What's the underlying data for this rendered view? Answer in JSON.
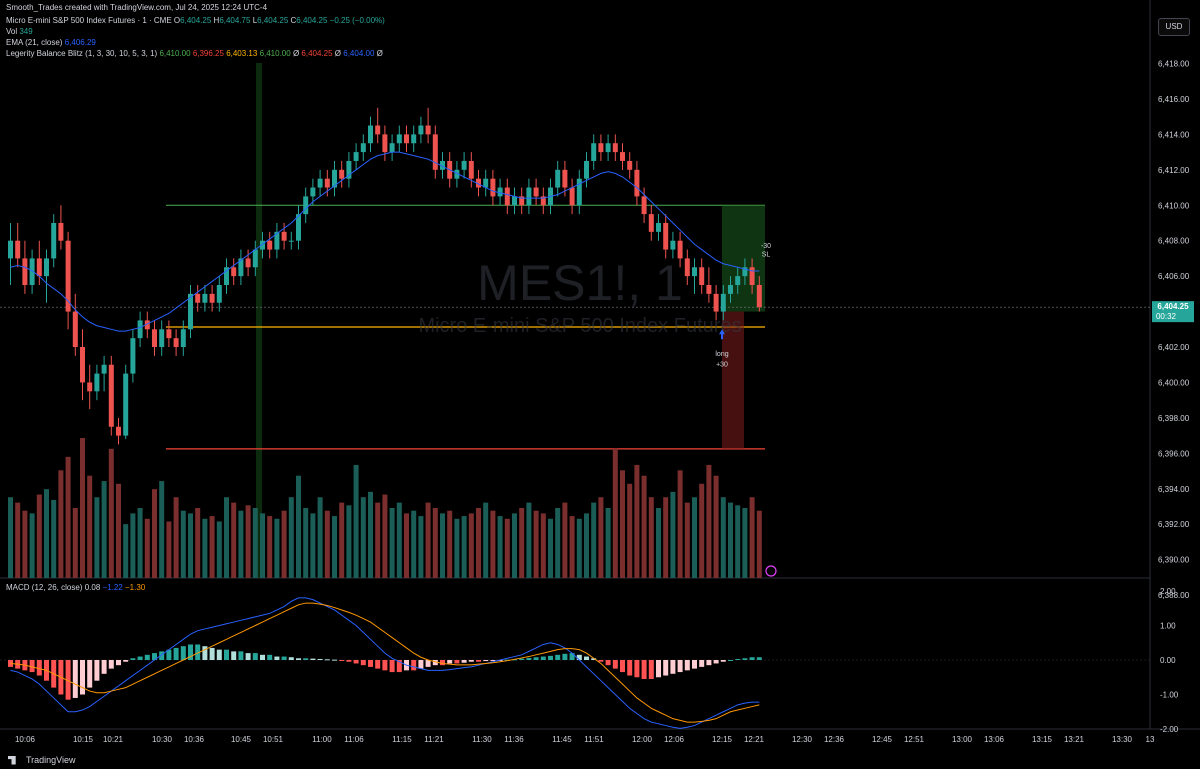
{
  "header": {
    "watermark_line": "Smooth_Trades created with TradingView.com, Jul 24, 2025 12:24 UTC-4",
    "symbol_line": {
      "name": "Micro E-mini S&P 500 Index Futures · 1 · CME",
      "o_label": "O",
      "o_value": "6,404.25",
      "h_label": "H",
      "h_value": "6,404.75",
      "l_label": "L",
      "l_value": "6,404.25",
      "c_label": "C",
      "c_value": "6,404.25",
      "change": "−0.25 (−0.00%)"
    },
    "vol_label": "Vol",
    "vol_value": "349",
    "ema_label": "EMA (21, close)",
    "ema_value": "6,406.29",
    "legerity_label": "Legerity Balance Blitz (1, 3, 30, 10, 5, 3, 1)",
    "legerity_values": [
      "6,410.00",
      "6,396.25",
      "6,403.13",
      "6,410.00",
      "Ø",
      "6,404.25",
      "Ø",
      "6,404.00",
      "Ø"
    ]
  },
  "currency": "USD",
  "watermark": {
    "symbol": "MES1!, 1",
    "name": "Micro E-mini S&P 500 Index Futures"
  },
  "price_axis": {
    "ticks": [
      "6,418.00",
      "6,416.00",
      "6,414.00",
      "6,412.00",
      "6,410.00",
      "6,408.00",
      "6,406.00",
      "6,404.00",
      "6,402.00",
      "6,400.00",
      "6,398.00",
      "6,396.00",
      "6,394.00",
      "6,392.00",
      "6,390.00",
      "6,388.00"
    ],
    "current_price": "6,404.25",
    "countdown": "00:32"
  },
  "macd_axis": {
    "ticks": [
      "2.00",
      "1.00",
      "0.00",
      "-1.00",
      "-2.00"
    ]
  },
  "macd_header": {
    "label": "MACD (12, 26, close)",
    "v1": "0.08",
    "v2": "−1.22",
    "v3": "−1.30"
  },
  "time_axis": {
    "ticks": [
      "10:06",
      "10:15",
      "10:21",
      "10:30",
      "10:36",
      "10:45",
      "10:51",
      "11:00",
      "11:06",
      "11:15",
      "11:21",
      "11:30",
      "11:36",
      "11:45",
      "11:51",
      "12:00",
      "12:06",
      "12:15",
      "12:21",
      "12:30",
      "12:36",
      "12:45",
      "12:51",
      "13:00",
      "13:06",
      "13:15",
      "13:21",
      "13:30",
      "13"
    ]
  },
  "trade": {
    "entry_label": "long",
    "entry_qty": "+30",
    "exit_qty": "-30",
    "exit_label": "SL"
  },
  "brand": "TradingView",
  "colors": {
    "up": "#26a69a",
    "down": "#ef5350",
    "ema": "#2962ff",
    "macd": "#2962ff",
    "signal": "#ff9800",
    "level_green": "#4caf50",
    "level_orange": "#ffb300",
    "level_red": "#f44336"
  },
  "chart_data": {
    "type": "candlestick",
    "interval": "1 minute",
    "ylim": [
      6388,
      6419
    ],
    "levels": [
      6410.0,
      6403.13,
      6396.25
    ],
    "entry_price": 6404.0,
    "ohlc": [
      [
        6407.0,
        6409.0,
        6405.5,
        6408.0
      ],
      [
        6408.0,
        6409.0,
        6406.5,
        6407.0
      ],
      [
        6407.0,
        6408.0,
        6405.0,
        6405.5
      ],
      [
        6405.5,
        6407.5,
        6405.0,
        6407.0
      ],
      [
        6407.0,
        6408.0,
        6405.5,
        6406.0
      ],
      [
        6406.0,
        6407.5,
        6404.5,
        6407.0
      ],
      [
        6407.0,
        6409.5,
        6406.5,
        6409.0
      ],
      [
        6409.0,
        6410.0,
        6407.5,
        6408.0
      ],
      [
        6408.0,
        6408.5,
        6403.0,
        6404.0
      ],
      [
        6404.0,
        6405.0,
        6401.5,
        6402.0
      ],
      [
        6402.0,
        6403.0,
        6399.0,
        6400.0
      ],
      [
        6400.0,
        6401.0,
        6398.5,
        6399.5
      ],
      [
        6399.5,
        6401.0,
        6399.0,
        6400.5
      ],
      [
        6400.5,
        6401.5,
        6399.5,
        6401.0
      ],
      [
        6401.0,
        6401.5,
        6397.0,
        6397.5
      ],
      [
        6397.5,
        6398.0,
        6396.5,
        6397.0
      ],
      [
        6397.0,
        6401.0,
        6396.8,
        6400.5
      ],
      [
        6400.5,
        6403.0,
        6400.0,
        6402.5
      ],
      [
        6402.5,
        6404.0,
        6402.0,
        6403.5
      ],
      [
        6403.5,
        6404.0,
        6402.5,
        6403.0
      ],
      [
        6403.0,
        6403.5,
        6401.5,
        6402.0
      ],
      [
        6402.0,
        6403.5,
        6401.5,
        6403.0
      ],
      [
        6403.0,
        6403.5,
        6402.0,
        6402.5
      ],
      [
        6402.5,
        6403.0,
        6401.5,
        6402.0
      ],
      [
        6402.0,
        6403.5,
        6401.5,
        6403.0
      ],
      [
        6403.0,
        6405.5,
        6402.5,
        6405.0
      ],
      [
        6405.0,
        6405.5,
        6404.0,
        6404.5
      ],
      [
        6404.5,
        6405.5,
        6404.0,
        6405.0
      ],
      [
        6405.0,
        6405.5,
        6404.0,
        6404.5
      ],
      [
        6404.5,
        6406.0,
        6404.0,
        6405.5
      ],
      [
        6405.5,
        6407.0,
        6405.0,
        6406.5
      ],
      [
        6406.5,
        6407.0,
        6405.5,
        6406.0
      ],
      [
        6406.0,
        6407.5,
        6405.5,
        6407.0
      ],
      [
        6407.0,
        6407.5,
        6406.0,
        6406.5
      ],
      [
        6406.5,
        6408.0,
        6406.0,
        6407.5
      ],
      [
        6407.5,
        6408.5,
        6407.0,
        6408.0
      ],
      [
        6408.0,
        6408.5,
        6407.0,
        6407.5
      ],
      [
        6407.5,
        6409.0,
        6407.0,
        6408.5
      ],
      [
        6408.5,
        6409.0,
        6407.5,
        6408.0
      ],
      [
        6408.0,
        6408.5,
        6407.5,
        6408.0
      ],
      [
        6408.0,
        6410.0,
        6407.5,
        6409.5
      ],
      [
        6409.5,
        6411.0,
        6409.0,
        6410.5
      ],
      [
        6410.5,
        6411.5,
        6410.0,
        6411.0
      ],
      [
        6411.0,
        6412.0,
        6410.5,
        6411.5
      ],
      [
        6411.5,
        6412.0,
        6410.5,
        6411.0
      ],
      [
        6411.0,
        6412.5,
        6410.5,
        6412.0
      ],
      [
        6412.0,
        6412.5,
        6411.0,
        6411.5
      ],
      [
        6411.5,
        6413.0,
        6411.0,
        6412.5
      ],
      [
        6412.5,
        6413.5,
        6412.0,
        6413.0
      ],
      [
        6413.0,
        6414.0,
        6412.5,
        6413.5
      ],
      [
        6413.5,
        6415.0,
        6413.0,
        6414.5
      ],
      [
        6414.5,
        6415.5,
        6413.5,
        6414.0
      ],
      [
        6414.0,
        6414.5,
        6412.5,
        6413.0
      ],
      [
        6413.0,
        6414.0,
        6412.5,
        6413.5
      ],
      [
        6413.5,
        6414.5,
        6413.0,
        6414.0
      ],
      [
        6414.0,
        6414.5,
        6413.0,
        6413.5
      ],
      [
        6413.5,
        6414.5,
        6413.0,
        6414.0
      ],
      [
        6414.0,
        6415.0,
        6413.5,
        6414.5
      ],
      [
        6414.5,
        6415.5,
        6413.5,
        6414.0
      ],
      [
        6414.0,
        6414.5,
        6411.5,
        6412.0
      ],
      [
        6412.0,
        6413.0,
        6411.5,
        6412.5
      ],
      [
        6412.5,
        6413.0,
        6411.0,
        6411.5
      ],
      [
        6411.5,
        6412.5,
        6411.0,
        6412.0
      ],
      [
        6412.0,
        6413.0,
        6411.5,
        6412.5
      ],
      [
        6412.5,
        6413.0,
        6411.0,
        6411.5
      ],
      [
        6411.5,
        6412.0,
        6410.5,
        6411.0
      ],
      [
        6411.0,
        6412.0,
        6410.5,
        6411.5
      ],
      [
        6411.5,
        6412.0,
        6410.0,
        6410.5
      ],
      [
        6410.5,
        6411.5,
        6410.0,
        6411.0
      ],
      [
        6411.0,
        6411.5,
        6409.5,
        6410.0
      ],
      [
        6410.0,
        6411.0,
        6409.5,
        6410.5
      ],
      [
        6410.5,
        6411.0,
        6409.5,
        6410.0
      ],
      [
        6410.0,
        6411.5,
        6409.5,
        6411.0
      ],
      [
        6411.0,
        6411.5,
        6410.0,
        6410.5
      ],
      [
        6410.5,
        6411.0,
        6409.5,
        6410.0
      ],
      [
        6410.0,
        6411.5,
        6409.5,
        6411.0
      ],
      [
        6411.0,
        6412.5,
        6410.5,
        6412.0
      ],
      [
        6412.0,
        6412.5,
        6410.5,
        6411.0
      ],
      [
        6411.0,
        6411.5,
        6409.5,
        6410.0
      ],
      [
        6410.0,
        6412.0,
        6409.5,
        6411.5
      ],
      [
        6411.5,
        6413.0,
        6411.0,
        6412.5
      ],
      [
        6412.5,
        6414.0,
        6412.0,
        6413.5
      ],
      [
        6413.5,
        6414.0,
        6412.5,
        6413.0
      ],
      [
        6413.0,
        6414.0,
        6412.5,
        6413.5
      ],
      [
        6413.5,
        6414.0,
        6412.5,
        6413.0
      ],
      [
        6413.0,
        6413.5,
        6412.0,
        6412.5
      ],
      [
        6412.5,
        6413.0,
        6411.5,
        6412.0
      ],
      [
        6412.0,
        6412.5,
        6410.0,
        6410.5
      ],
      [
        6410.5,
        6411.0,
        6409.0,
        6409.5
      ],
      [
        6409.5,
        6410.0,
        6408.0,
        6408.5
      ],
      [
        6408.5,
        6409.5,
        6408.0,
        6409.0
      ],
      [
        6409.0,
        6409.5,
        6407.0,
        6407.5
      ],
      [
        6407.5,
        6408.5,
        6407.0,
        6408.0
      ],
      [
        6408.0,
        6408.5,
        6406.5,
        6407.0
      ],
      [
        6407.0,
        6407.5,
        6405.5,
        6406.0
      ],
      [
        6406.0,
        6407.0,
        6405.0,
        6406.5
      ],
      [
        6406.5,
        6407.0,
        6405.0,
        6405.5
      ],
      [
        6405.5,
        6406.5,
        6404.5,
        6405.0
      ],
      [
        6405.0,
        6405.5,
        6403.5,
        6404.0
      ],
      [
        6404.0,
        6405.5,
        6403.5,
        6405.0
      ],
      [
        6405.0,
        6406.0,
        6404.5,
        6405.5
      ],
      [
        6405.5,
        6406.5,
        6405.0,
        6406.0
      ],
      [
        6406.0,
        6407.0,
        6405.5,
        6406.5
      ],
      [
        6406.5,
        6407.0,
        6405.0,
        6405.5
      ],
      [
        6405.5,
        6406.0,
        6404.0,
        6404.25
      ]
    ],
    "volume": [
      300,
      280,
      250,
      240,
      310,
      330,
      290,
      400,
      450,
      260,
      520,
      380,
      300,
      360,
      480,
      350,
      200,
      240,
      260,
      220,
      330,
      360,
      210,
      300,
      250,
      240,
      260,
      220,
      230,
      210,
      300,
      280,
      250,
      270,
      260,
      240,
      230,
      220,
      250,
      300,
      380,
      260,
      240,
      300,
      250,
      230,
      280,
      270,
      420,
      300,
      320,
      280,
      310,
      260,
      280,
      240,
      250,
      230,
      280,
      260,
      240,
      250,
      220,
      230,
      240,
      260,
      280,
      250,
      230,
      220,
      240,
      260,
      280,
      250,
      240,
      220,
      260,
      280,
      230,
      220,
      240,
      280,
      300,
      260,
      480,
      400,
      350,
      420,
      380,
      300,
      260,
      300,
      320,
      400,
      280,
      300,
      350,
      420,
      380,
      300,
      280,
      270,
      260,
      300,
      250
    ],
    "ema21": [
      6406.5,
      6406.6,
      6406.5,
      6406.3,
      6406.0,
      6405.6,
      6405.3,
      6405.0,
      6404.6,
      6404.1,
      6403.7,
      6403.4,
      6403.2,
      6403.1,
      6403.0,
      6402.9,
      6402.9,
      6403.0,
      6403.1,
      6403.3,
      6403.5,
      6403.7,
      6403.9,
      6404.2,
      6404.5,
      6404.8,
      6405.1,
      6405.4,
      6405.7,
      6406.0,
      6406.3,
      6406.6,
      6406.9,
      6407.2,
      6407.5,
      6407.8,
      6408.1,
      6408.4,
      6408.7,
      6409.0,
      6409.4,
      6409.8,
      6410.2,
      6410.5,
      6410.8,
      6411.1,
      6411.4,
      6411.7,
      6412.0,
      6412.3,
      6412.6,
      6412.8,
      6412.9,
      6413.0,
      6413.0,
      6412.9,
      6412.8,
      6412.7,
      6412.6,
      6412.4,
      6412.2,
      6412.0,
      6411.8,
      6411.6,
      6411.4,
      6411.2,
      6411.0,
      6410.8,
      6410.7,
      6410.6,
      6410.5,
      6410.4,
      6410.4,
      6410.4,
      6410.4,
      6410.5,
      6410.6,
      6410.8,
      6411.0,
      6411.2,
      6411.4,
      6411.6,
      6411.8,
      6411.9,
      6411.8,
      6411.6,
      6411.3,
      6411.0,
      6410.6,
      6410.2,
      6409.8,
      6409.4,
      6409.0,
      6408.6,
      6408.2,
      6407.8,
      6407.5,
      6407.2,
      6406.9,
      6406.7,
      6406.6,
      6406.5,
      6406.4,
      6406.3,
      6406.29
    ],
    "macd_hist": [
      -0.2,
      -0.25,
      -0.3,
      -0.35,
      -0.45,
      -0.6,
      -0.8,
      -1.0,
      -1.15,
      -1.1,
      -1.0,
      -0.8,
      -0.6,
      -0.4,
      -0.25,
      -0.15,
      -0.05,
      0.05,
      0.1,
      0.15,
      0.2,
      0.25,
      0.3,
      0.35,
      0.4,
      0.45,
      0.45,
      0.4,
      0.35,
      0.3,
      0.3,
      0.25,
      0.25,
      0.2,
      0.2,
      0.15,
      0.15,
      0.1,
      0.1,
      0.08,
      0.05,
      0.05,
      0.04,
      0.03,
      0.02,
      0.01,
      -0.02,
      -0.05,
      -0.1,
      -0.15,
      -0.2,
      -0.25,
      -0.3,
      -0.35,
      -0.35,
      -0.3,
      -0.3,
      -0.25,
      -0.2,
      -0.15,
      -0.15,
      -0.1,
      -0.1,
      -0.08,
      -0.05,
      -0.05,
      -0.03,
      -0.02,
      -0.01,
      0.01,
      0.02,
      0.04,
      0.06,
      0.08,
      0.1,
      0.12,
      0.15,
      0.18,
      0.2,
      0.15,
      0.1,
      0.05,
      -0.05,
      -0.15,
      -0.25,
      -0.35,
      -0.45,
      -0.5,
      -0.55,
      -0.55,
      -0.5,
      -0.45,
      -0.4,
      -0.35,
      -0.3,
      -0.25,
      -0.2,
      -0.15,
      -0.1,
      -0.05,
      0.0,
      0.03,
      0.05,
      0.08,
      0.08
    ],
    "macd_line": [
      -0.3,
      -0.35,
      -0.45,
      -0.55,
      -0.7,
      -0.9,
      -1.1,
      -1.3,
      -1.5,
      -1.5,
      -1.45,
      -1.35,
      -1.2,
      -1.05,
      -0.9,
      -0.75,
      -0.6,
      -0.45,
      -0.3,
      -0.15,
      0.0,
      0.15,
      0.3,
      0.45,
      0.6,
      0.75,
      0.85,
      0.9,
      0.95,
      1.0,
      1.05,
      1.1,
      1.15,
      1.2,
      1.25,
      1.3,
      1.35,
      1.45,
      1.55,
      1.7,
      1.8,
      1.8,
      1.75,
      1.65,
      1.55,
      1.45,
      1.3,
      1.15,
      1.0,
      0.8,
      0.6,
      0.4,
      0.2,
      0.05,
      -0.05,
      -0.15,
      -0.2,
      -0.25,
      -0.3,
      -0.3,
      -0.3,
      -0.28,
      -0.25,
      -0.22,
      -0.2,
      -0.15,
      -0.1,
      -0.05,
      0.0,
      0.05,
      0.1,
      0.15,
      0.25,
      0.35,
      0.45,
      0.5,
      0.45,
      0.35,
      0.2,
      0.0,
      -0.2,
      -0.4,
      -0.6,
      -0.8,
      -1.0,
      -1.2,
      -1.4,
      -1.55,
      -1.7,
      -1.8,
      -1.85,
      -1.9,
      -1.95,
      -1.98,
      -1.95,
      -1.9,
      -1.8,
      -1.7,
      -1.6,
      -1.5,
      -1.4,
      -1.3,
      -1.25,
      -1.22,
      -1.22
    ],
    "signal_line": [
      -0.1,
      -0.12,
      -0.15,
      -0.2,
      -0.25,
      -0.3,
      -0.4,
      -0.5,
      -0.6,
      -0.7,
      -0.8,
      -0.9,
      -0.95,
      -0.95,
      -0.9,
      -0.85,
      -0.8,
      -0.7,
      -0.6,
      -0.5,
      -0.4,
      -0.3,
      -0.2,
      -0.1,
      0.0,
      0.1,
      0.2,
      0.3,
      0.4,
      0.5,
      0.6,
      0.7,
      0.8,
      0.9,
      1.0,
      1.1,
      1.2,
      1.3,
      1.4,
      1.5,
      1.6,
      1.65,
      1.65,
      1.62,
      1.58,
      1.52,
      1.45,
      1.38,
      1.3,
      1.2,
      1.1,
      0.95,
      0.8,
      0.65,
      0.5,
      0.35,
      0.2,
      0.08,
      0.0,
      -0.05,
      -0.1,
      -0.12,
      -0.14,
      -0.14,
      -0.14,
      -0.12,
      -0.1,
      -0.08,
      -0.05,
      -0.02,
      0.02,
      0.06,
      0.1,
      0.15,
      0.2,
      0.25,
      0.3,
      0.33,
      0.33,
      0.3,
      0.2,
      0.05,
      -0.1,
      -0.3,
      -0.5,
      -0.7,
      -0.9,
      -1.1,
      -1.25,
      -1.4,
      -1.5,
      -1.6,
      -1.7,
      -1.75,
      -1.8,
      -1.8,
      -1.78,
      -1.75,
      -1.7,
      -1.6,
      -1.5,
      -1.45,
      -1.4,
      -1.35,
      -1.3
    ]
  }
}
